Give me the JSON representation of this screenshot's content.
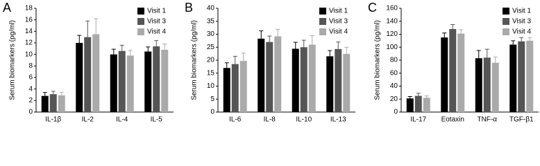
{
  "chart_data": [
    {
      "type": "bar",
      "label": "A",
      "ylabel": "Serum biomarkers (pg/ml)",
      "categories": [
        "IL-1β",
        "IL-2",
        "IL-4",
        "IL-5"
      ],
      "series": [
        {
          "name": "Visit 1",
          "color": "#000000",
          "values": [
            2.8,
            12.0,
            10.0,
            10.5
          ],
          "errors": [
            0.6,
            1.3,
            0.9,
            0.8
          ]
        },
        {
          "name": "Visit 3",
          "color": "#555555",
          "values": [
            3.1,
            13.0,
            10.6,
            11.4
          ],
          "errors": [
            0.5,
            2.8,
            1.0,
            1.0
          ]
        },
        {
          "name": "Visit 4",
          "color": "#aaaaaa",
          "values": [
            2.9,
            13.5,
            9.8,
            10.8
          ],
          "errors": [
            0.5,
            2.7,
            0.9,
            1.0
          ]
        }
      ],
      "ylim": [
        0,
        18
      ],
      "yticks": [
        0,
        2,
        4,
        6,
        8,
        10,
        12,
        14,
        16,
        18
      ],
      "legend": "upper right"
    },
    {
      "type": "bar",
      "label": "B",
      "ylabel": "Serum biomarkers (pg/ml)",
      "categories": [
        "IL-6",
        "IL-8",
        "IL-10",
        "IL-13"
      ],
      "series": [
        {
          "name": "Visit 1",
          "color": "#000000",
          "values": [
            17.0,
            28.3,
            24.4,
            21.5
          ],
          "errors": [
            2.0,
            3.0,
            2.5,
            2.2
          ]
        },
        {
          "name": "Visit 3",
          "color": "#555555",
          "values": [
            18.5,
            27.0,
            25.0,
            24.3
          ],
          "errors": [
            3.0,
            2.3,
            2.7,
            2.7
          ]
        },
        {
          "name": "Visit 4",
          "color": "#aaaaaa",
          "values": [
            19.7,
            29.2,
            26.0,
            22.4
          ],
          "errors": [
            3.0,
            2.7,
            3.5,
            2.6
          ]
        }
      ],
      "ylim": [
        0,
        40
      ],
      "yticks": [
        0,
        5,
        10,
        15,
        20,
        25,
        30,
        35,
        40
      ],
      "legend": "upper right"
    },
    {
      "type": "bar",
      "label": "C",
      "ylabel": "Serum biomarkers (pg/ml)",
      "categories": [
        "IL-17",
        "Eotaxin",
        "TNF-α",
        "TGF-β1"
      ],
      "series": [
        {
          "name": "Visit 1",
          "color": "#000000",
          "values": [
            21,
            115,
            83,
            104
          ],
          "errors": [
            3,
            7,
            12,
            6
          ]
        },
        {
          "name": "Visit 3",
          "color": "#555555",
          "values": [
            25,
            128,
            84,
            109
          ],
          "errors": [
            4,
            7,
            13,
            6
          ]
        },
        {
          "name": "Visit 4",
          "color": "#aaaaaa",
          "values": [
            22,
            121,
            76,
            110
          ],
          "errors": [
            3,
            6,
            9,
            5
          ]
        }
      ],
      "ylim": [
        0,
        160
      ],
      "yticks": [
        0,
        20,
        40,
        60,
        80,
        100,
        120,
        140,
        160
      ],
      "legend": "upper right"
    }
  ]
}
